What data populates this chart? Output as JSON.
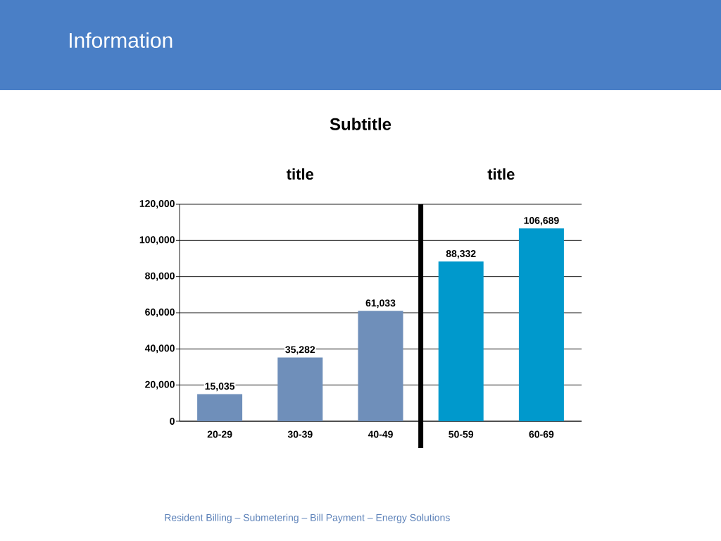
{
  "chart_data": [
    {
      "type": "other",
      "title": "Information",
      "subtitle": "Subtitle",
      "annotations": [
        "Resident Billing – Submetering – Bill Payment – Energy Solutions"
      ]
    },
    {
      "type": "bar",
      "title": "title",
      "categories": [
        "20-29",
        "30-39",
        "40-49"
      ],
      "values": [
        15035,
        35282,
        61033
      ],
      "color": "#6f8fba",
      "value_labels": [
        "15,035",
        "35,282",
        "61,033"
      ],
      "ylim": [
        0,
        120000
      ],
      "yticks": [
        0,
        {
          "value": 20000,
          "label": "20,000"
        },
        {
          "value": 40000,
          "label": "40,000"
        },
        {
          "value": 60000,
          "label": "60,000"
        },
        {
          "value": 80000,
          "label": "80,000"
        },
        {
          "value": 100000,
          "label": "100,000"
        },
        {
          "value": 120000,
          "label": "120,000"
        }
      ],
      "grid": "y"
    },
    {
      "type": "bar",
      "title": "title",
      "categories": [
        "50-59",
        "60-69"
      ],
      "values": [
        88332,
        106689
      ],
      "color": "#0099cc",
      "value_labels": [
        "88,332",
        "106,689"
      ],
      "ylim": [
        0,
        120000
      ],
      "yticks": [
        0,
        20000,
        40000,
        60000,
        80000,
        100000,
        120000
      ],
      "grid": "y",
      "tick_labels": "x"
    }
  ]
}
